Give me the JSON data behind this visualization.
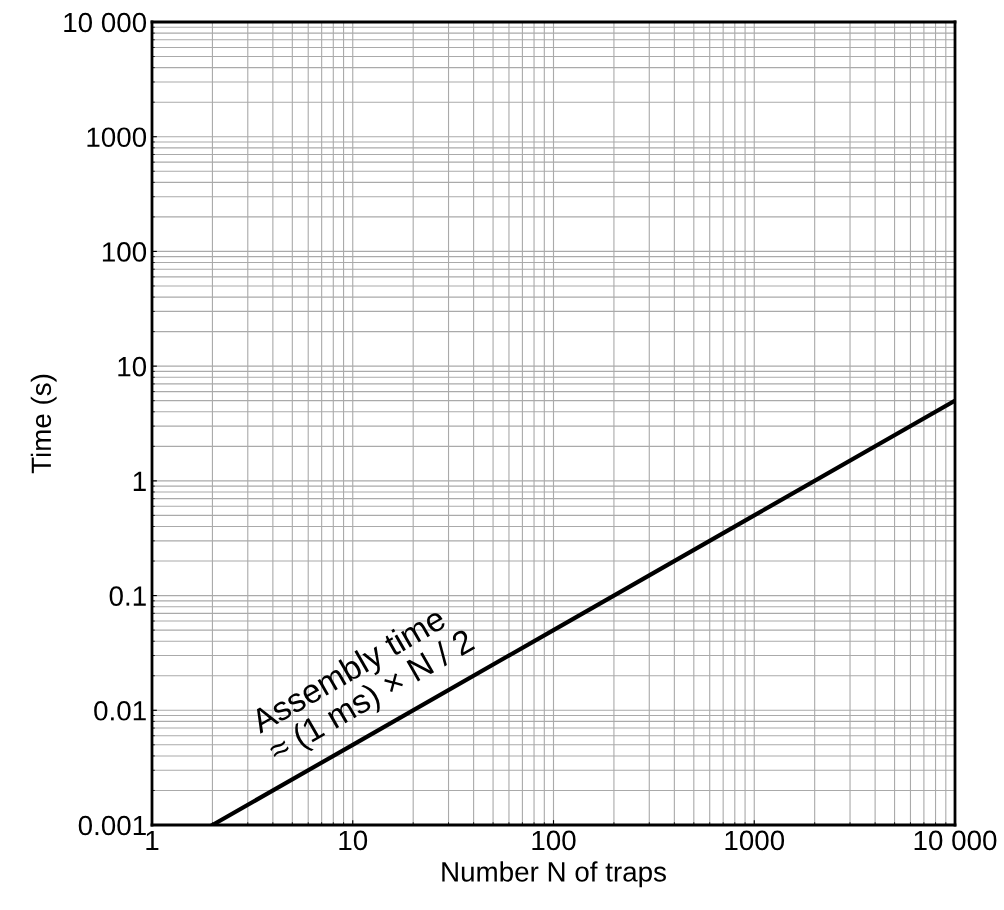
{
  "chart_data": {
    "type": "line",
    "xlabel": "Number N of traps",
    "ylabel": "Time (s)",
    "log": "xy",
    "grid": true,
    "legend": false,
    "x": [
      2,
      10,
      100,
      1000,
      10000
    ],
    "series": [
      {
        "color": "#000000",
        "values": [
          0.001,
          0.005,
          0.05,
          0.5,
          5
        ]
      }
    ],
    "xlim": [
      1,
      10000
    ],
    "ylim": [
      0.001,
      10000
    ],
    "xticks": [
      1,
      10,
      100,
      1000,
      {
        "value": 10000,
        "label": "10 000"
      }
    ],
    "yticks": [
      0.001,
      0.01,
      0.1,
      1,
      10,
      100,
      1000,
      {
        "value": 10000,
        "label": "10 000"
      }
    ],
    "annotations": [
      "Assembly time\n≈ (1 ms) × N / 2"
    ]
  }
}
